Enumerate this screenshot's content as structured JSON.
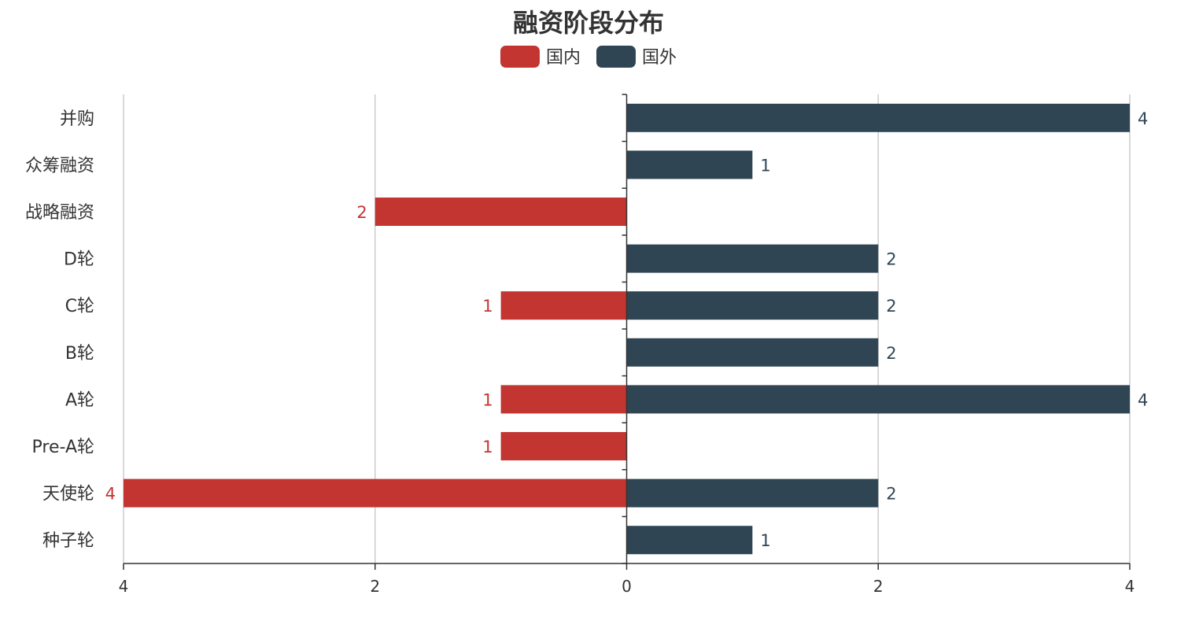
{
  "chart_data": {
    "type": "bar",
    "orientation": "horizontal-diverging",
    "title": "融资阶段分布",
    "legend_placement": "top-center",
    "grid": true,
    "xlim": [
      -4,
      4
    ],
    "x_ticks": [
      -4,
      -2,
      0,
      2,
      4
    ],
    "x_tick_labels": [
      "4",
      "2",
      "0",
      "2",
      "4"
    ],
    "categories": [
      "并购",
      "众筹融资",
      "战略融资",
      "D轮",
      "C轮",
      "B轮",
      "A轮",
      "Pre-A轮",
      "天使轮",
      "种子轮"
    ],
    "series": [
      {
        "name": "国内",
        "color": "#c23531",
        "direction": "left",
        "values": [
          0,
          0,
          2,
          0,
          1,
          0,
          1,
          1,
          4,
          0
        ]
      },
      {
        "name": "国外",
        "color": "#2f4554",
        "direction": "right",
        "values": [
          4,
          1,
          0,
          2,
          2,
          2,
          4,
          0,
          2,
          1
        ]
      }
    ]
  }
}
